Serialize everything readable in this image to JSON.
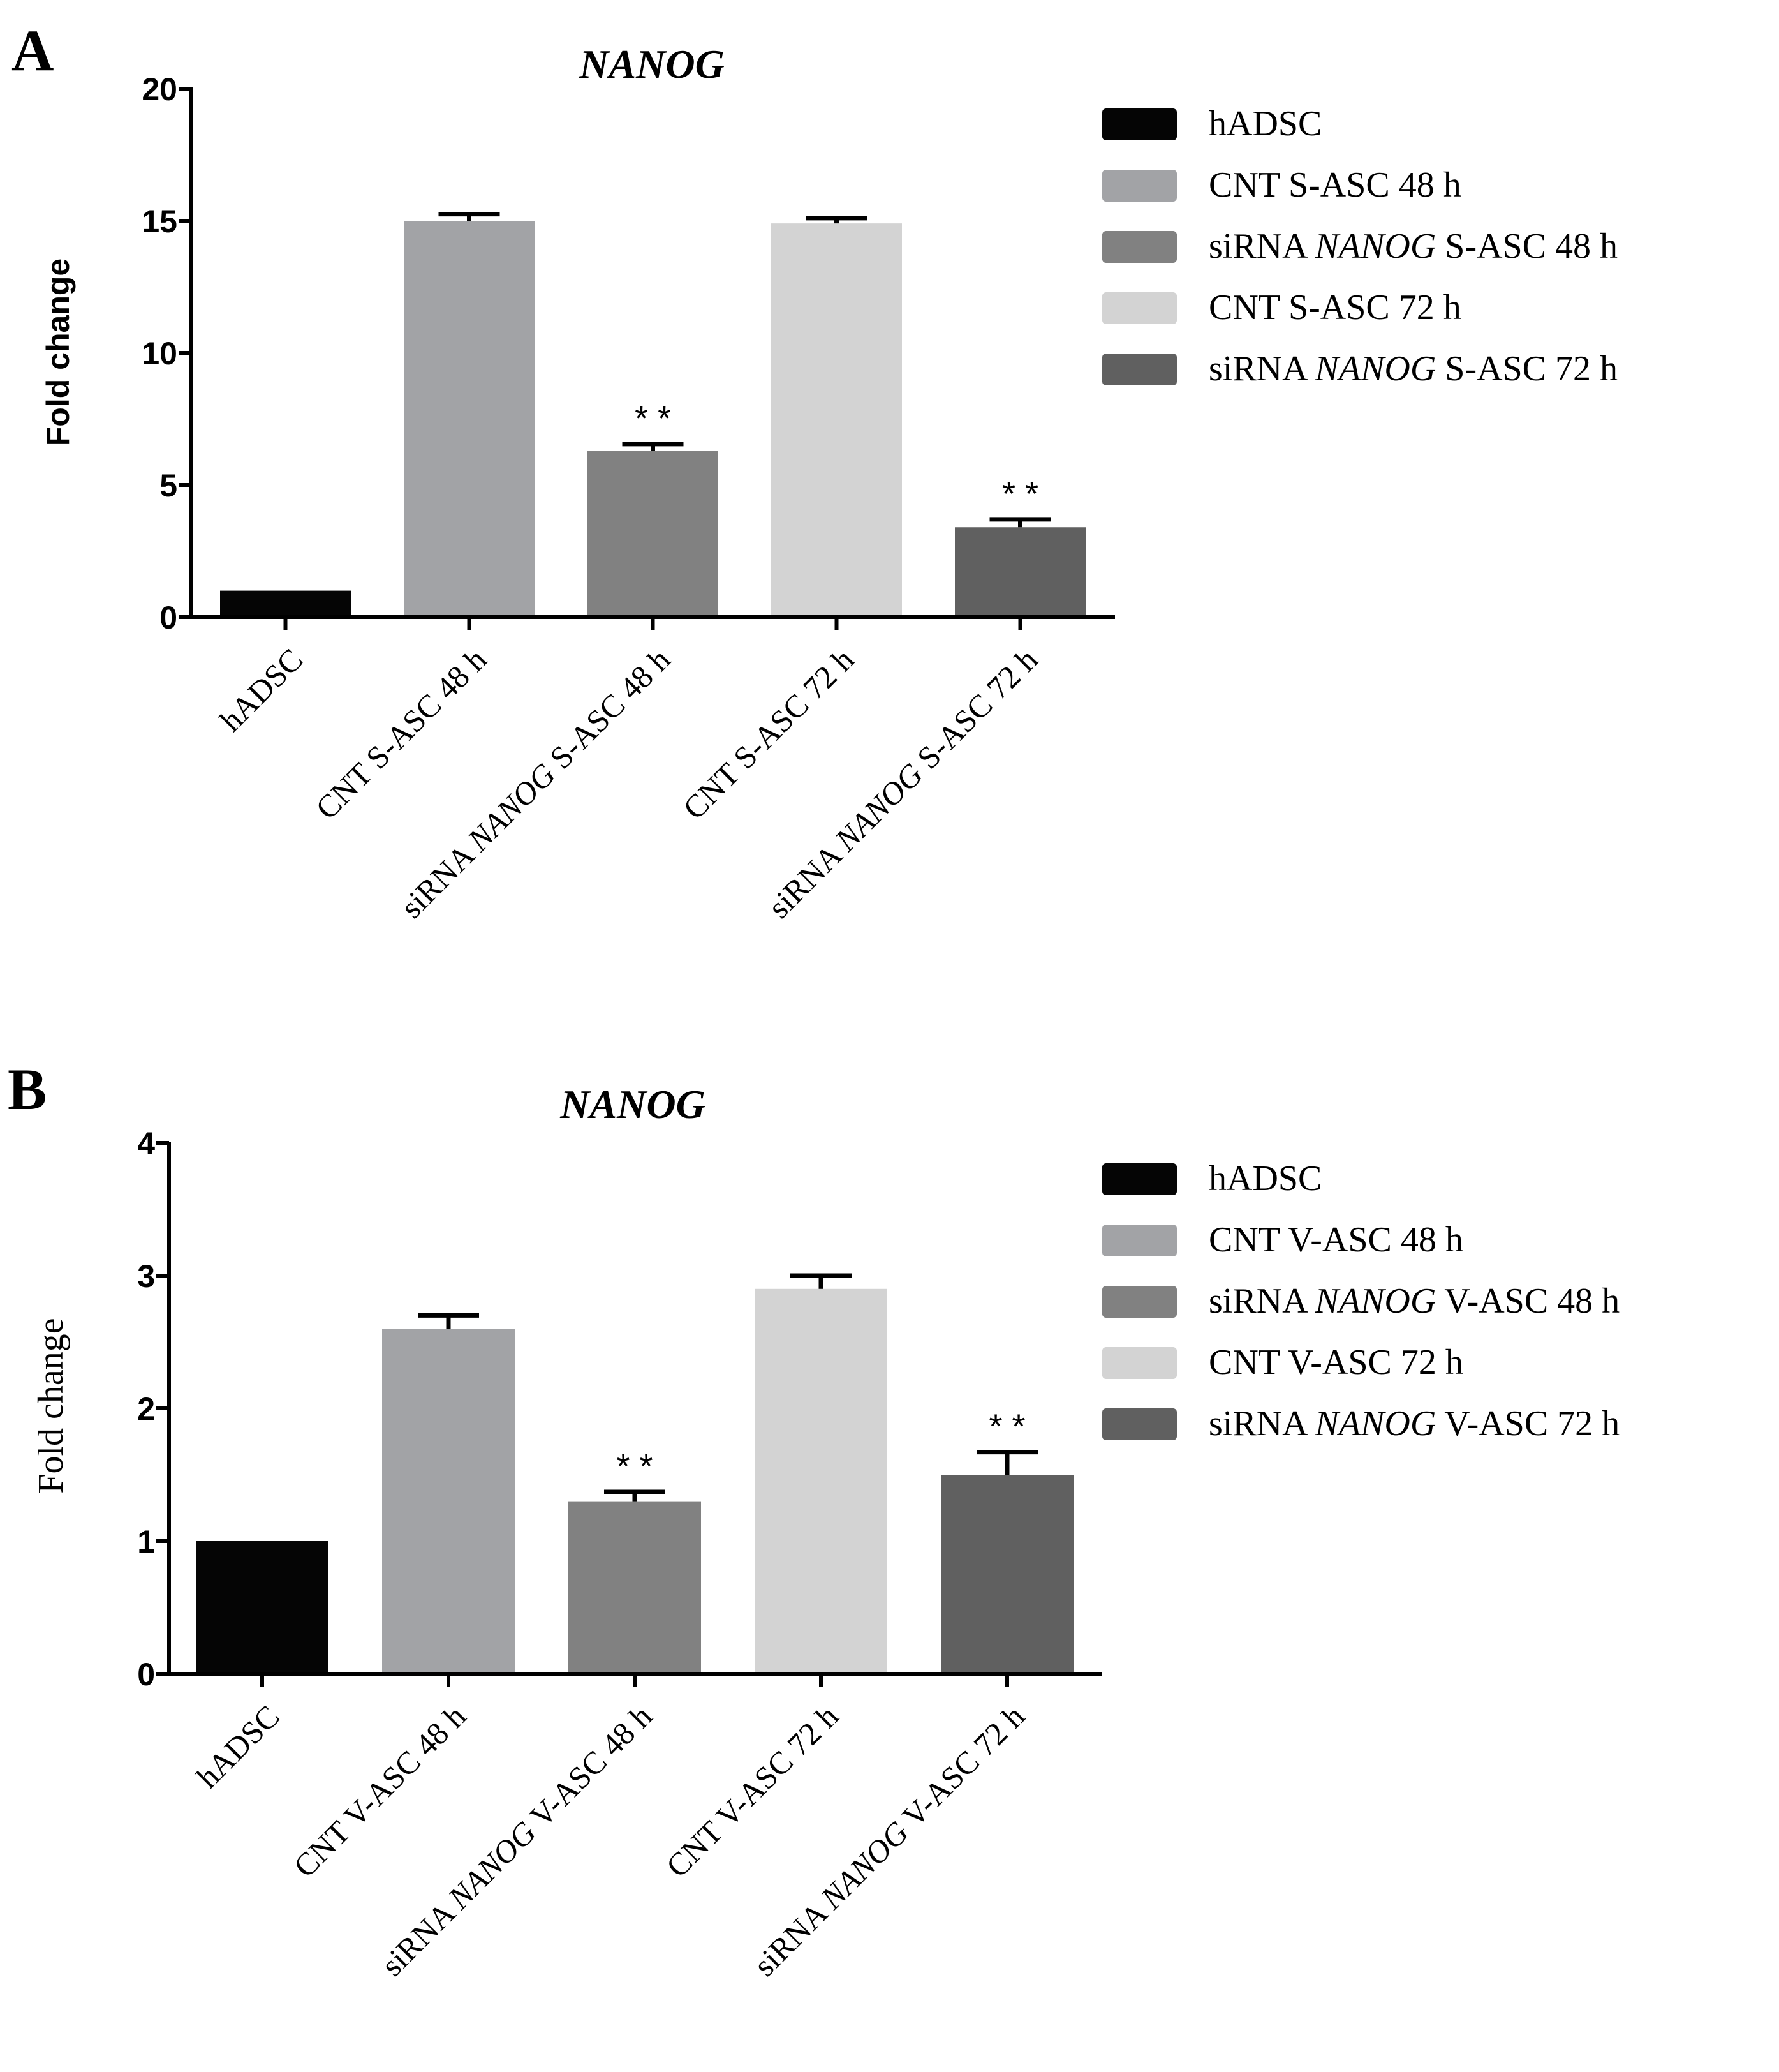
{
  "chart_data": [
    {
      "type": "bar",
      "panel_label": "A",
      "title": "NANOG",
      "ylabel": "Fold change",
      "xlabel": "",
      "ylim": [
        0,
        20
      ],
      "yticks": [
        0,
        5,
        10,
        15,
        20
      ],
      "grid": false,
      "legend_position": "right",
      "categories": [
        {
          "pre": "hADSC",
          "gene": "",
          "post": ""
        },
        {
          "pre": "CNT S-ASC 48 h",
          "gene": "",
          "post": ""
        },
        {
          "pre": "siRNA ",
          "gene": "NANOG",
          "post": " S-ASC 48 h"
        },
        {
          "pre": "CNT S-ASC 72 h",
          "gene": "",
          "post": ""
        },
        {
          "pre": "siRNA ",
          "gene": "NANOG",
          "post": " S-ASC 72 h"
        }
      ],
      "values": [
        1.0,
        15.0,
        6.3,
        14.9,
        3.4
      ],
      "errors": [
        0.0,
        0.25,
        0.25,
        0.2,
        0.3
      ],
      "significance": [
        "",
        "",
        "* *",
        "",
        "* *"
      ],
      "colors": [
        "#050505",
        "#a2a3a6",
        "#818181",
        "#d3d3d3",
        "#606060"
      ]
    },
    {
      "type": "bar",
      "panel_label": "B",
      "title": "NANOG",
      "ylabel": "Fold change",
      "xlabel": "",
      "ylim": [
        0,
        4
      ],
      "yticks": [
        0,
        1,
        2,
        3,
        4
      ],
      "grid": false,
      "legend_position": "right",
      "categories": [
        {
          "pre": "hADSC",
          "gene": "",
          "post": ""
        },
        {
          "pre": "CNT V-ASC 48 h",
          "gene": "",
          "post": ""
        },
        {
          "pre": "siRNA ",
          "gene": "NANOG",
          "post": " V-ASC 48 h"
        },
        {
          "pre": "CNT V-ASC 72 h",
          "gene": "",
          "post": ""
        },
        {
          "pre": "siRNA ",
          "gene": "NANOG",
          "post": " V-ASC 72 h"
        }
      ],
      "values": [
        1.0,
        2.6,
        1.3,
        2.9,
        1.5
      ],
      "errors": [
        0.0,
        0.1,
        0.07,
        0.1,
        0.17
      ],
      "significance": [
        "",
        "",
        "* *",
        "",
        "* *"
      ],
      "colors": [
        "#050505",
        "#a2a3a6",
        "#818181",
        "#d3d3d3",
        "#606060"
      ]
    }
  ]
}
